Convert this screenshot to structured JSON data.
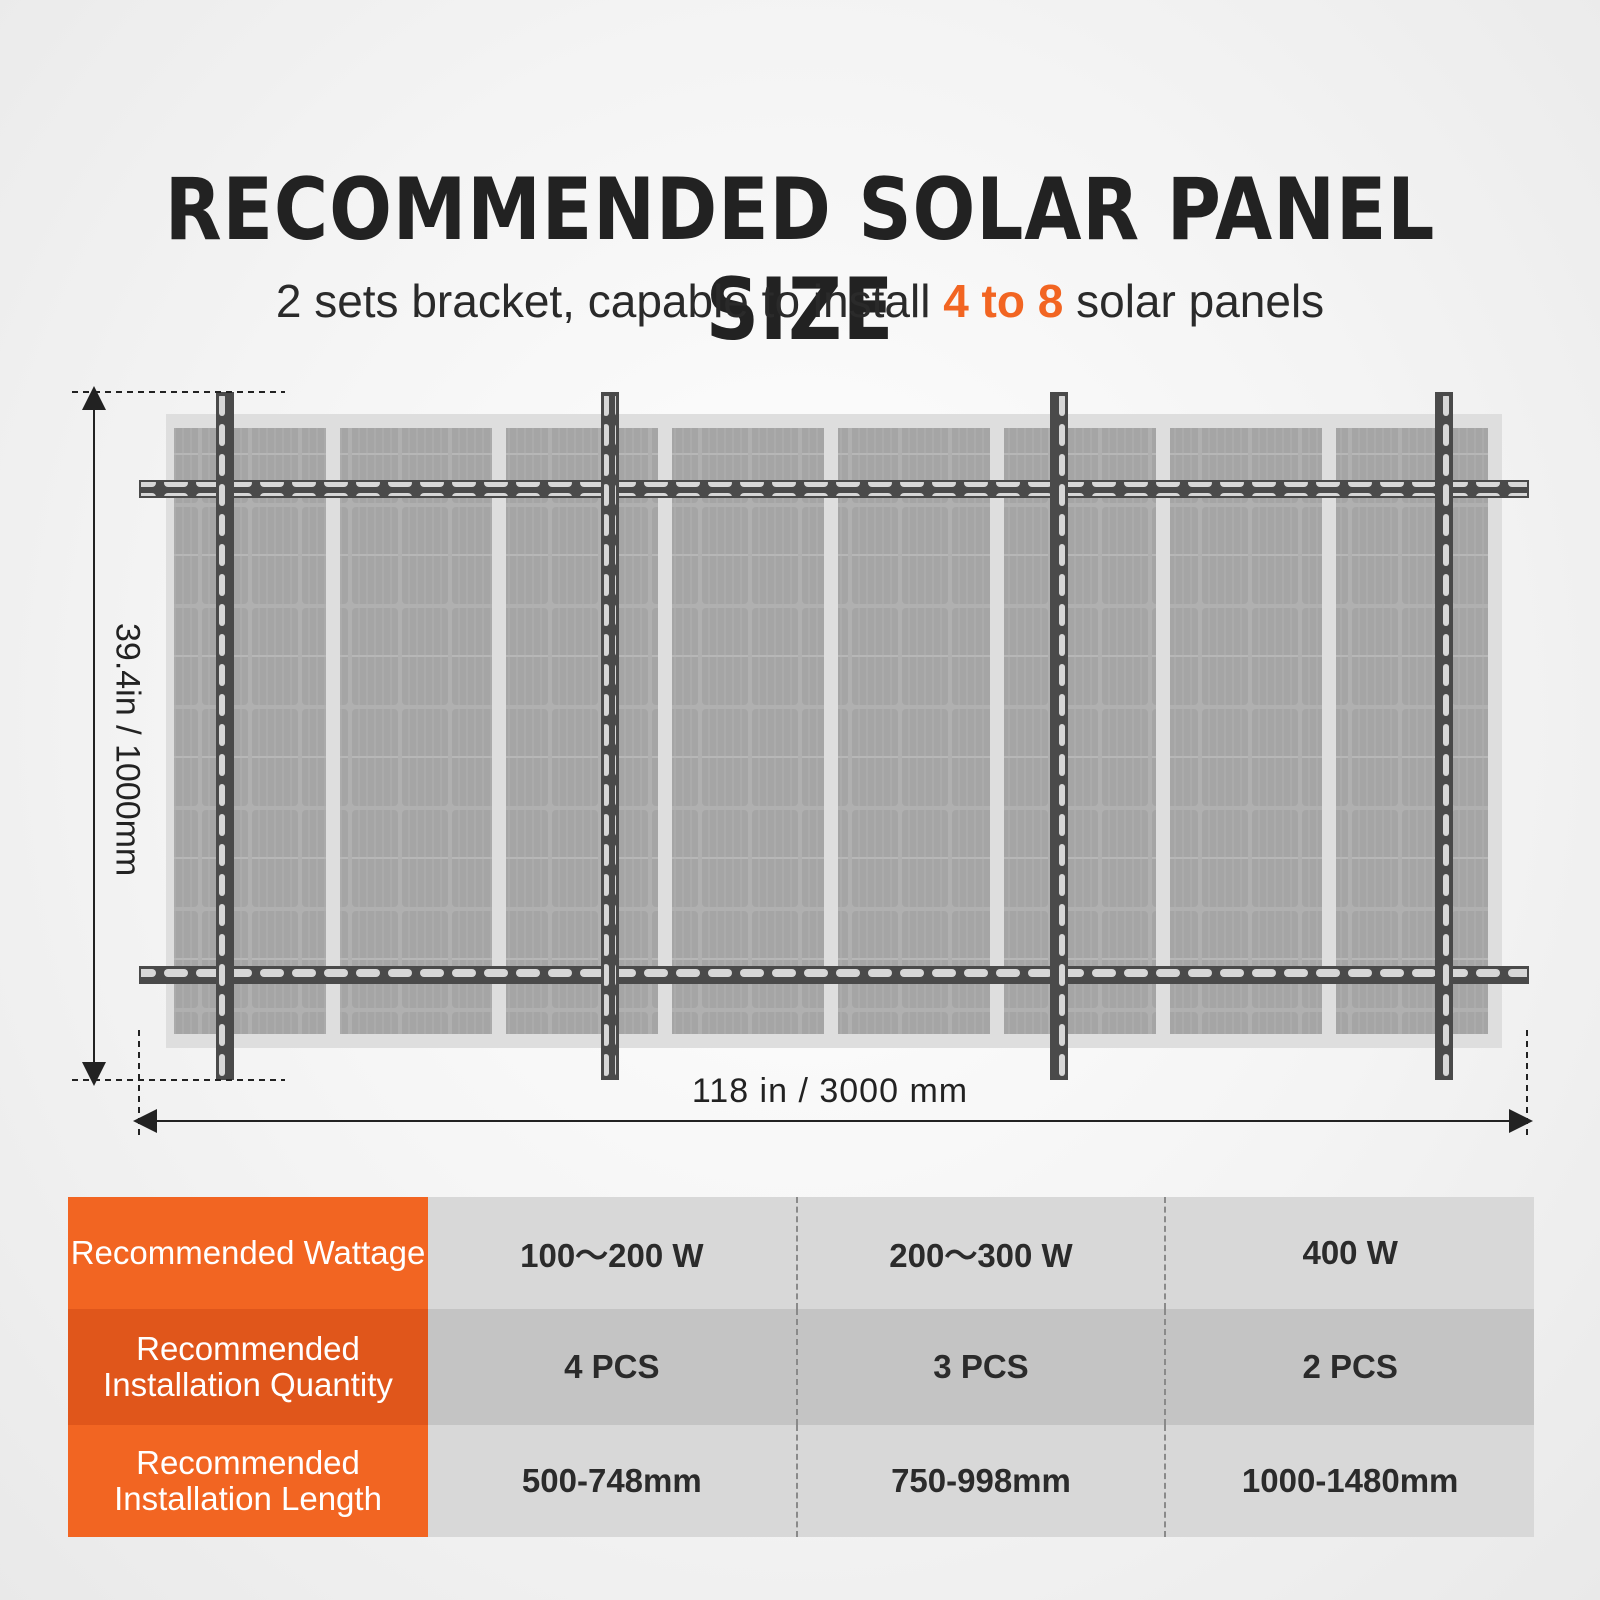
{
  "title": "RECOMMENDED SOLAR PANEL SIZE",
  "subtitle": {
    "before": "2 sets bracket, capable to install ",
    "highlight": "4 to 8",
    "after": " solar panels",
    "highlight_color": "#f26522"
  },
  "diagram": {
    "height_label": "39.4in / 1000mm",
    "width_label": "118 in / 3000 mm",
    "panel_count": 8
  },
  "table": {
    "rows": [
      {
        "label": "Recommended Wattage",
        "values": [
          "100～200 W",
          "200～300 W",
          "400 W"
        ]
      },
      {
        "label": "Recommended Installation Quantity",
        "values": [
          "4 PCS",
          "3 PCS",
          "2 PCS"
        ]
      },
      {
        "label": "Recommended Installation Length",
        "values": [
          "500-748mm",
          "750-998mm",
          "1000-1480mm"
        ]
      }
    ]
  },
  "colors": {
    "accent": "#f26522",
    "text": "#222222",
    "panel": "#a9a9a9",
    "rail": "#4a4a4a"
  }
}
